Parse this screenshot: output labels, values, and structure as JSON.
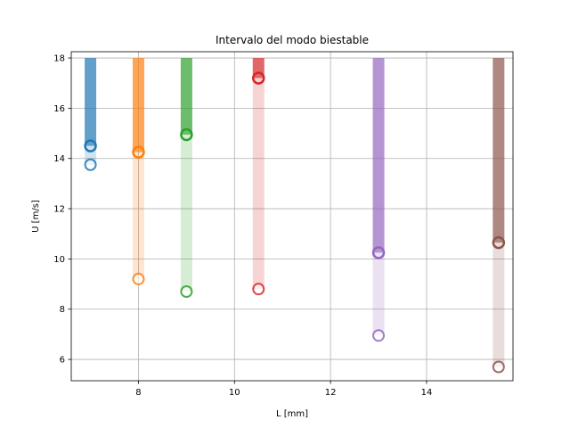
{
  "chart_data": {
    "type": "scatter",
    "title": "Intervalo del modo biestable",
    "xlabel": "L [mm]",
    "ylabel": "U [m/s]",
    "xlim": [
      6.6,
      15.8
    ],
    "ylim": [
      5.15,
      18.25
    ],
    "xticks": [
      8,
      10,
      12,
      14
    ],
    "yticks": [
      6,
      8,
      10,
      12,
      14,
      16,
      18
    ],
    "grid": true,
    "upper_limit": 18,
    "series": [
      {
        "x": 7.0,
        "upper_point": 14.5,
        "lower_point": 13.75,
        "color": "#1f77b4"
      },
      {
        "x": 8.0,
        "upper_point": 14.25,
        "lower_point": 9.2,
        "color": "#ff7f0e"
      },
      {
        "x": 9.0,
        "upper_point": 14.95,
        "lower_point": 8.7,
        "color": "#2ca02c"
      },
      {
        "x": 10.5,
        "upper_point": 17.2,
        "lower_point": 8.8,
        "color": "#d62728"
      },
      {
        "x": 13.0,
        "upper_point": 10.25,
        "lower_point": 6.95,
        "color": "#9467bd"
      },
      {
        "x": 15.5,
        "upper_point": 10.65,
        "lower_point": 5.7,
        "color": "#8c564b"
      }
    ]
  }
}
